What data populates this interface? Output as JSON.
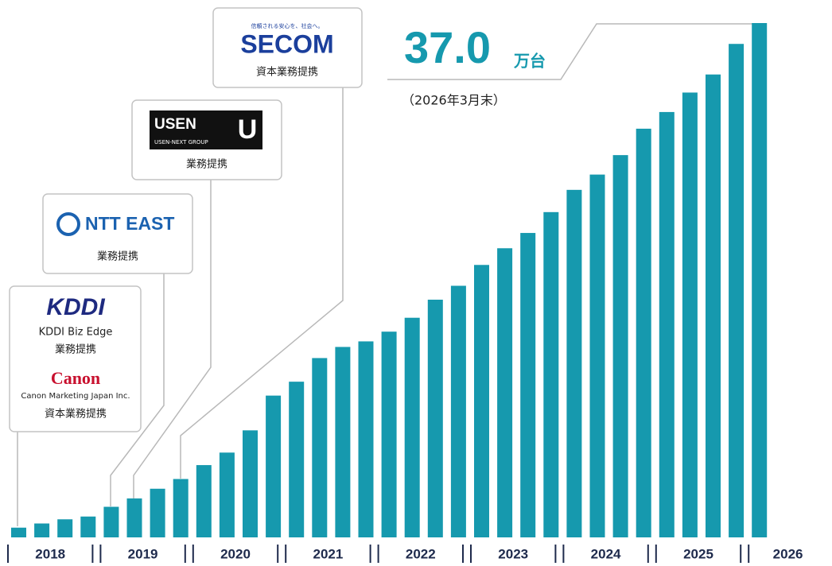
{
  "chart_data": {
    "type": "bar",
    "color": "#1699ae",
    "categories": [
      null,
      null,
      null,
      null,
      null,
      null,
      null,
      null,
      null,
      null,
      null,
      null,
      null,
      null,
      null,
      null,
      null,
      null,
      null,
      null,
      null,
      null,
      null,
      null,
      null,
      null,
      null,
      null,
      null,
      null,
      null,
      null,
      null
    ],
    "values": [
      0.7,
      1.0,
      1.3,
      1.5,
      2.2,
      2.8,
      3.5,
      4.2,
      5.2,
      6.1,
      7.7,
      10.2,
      11.2,
      12.9,
      13.7,
      14.1,
      14.8,
      15.8,
      17.1,
      18.1,
      19.6,
      20.8,
      21.9,
      23.4,
      25.0,
      26.1,
      27.5,
      29.4,
      30.6,
      32.0,
      33.3,
      35.5,
      37.0
    ],
    "ylim": [
      0,
      37.0
    ],
    "groups": [
      {
        "label": "2018",
        "size": 4
      },
      {
        "label": "2019",
        "size": 4
      },
      {
        "label": "2020",
        "size": 4
      },
      {
        "label": "2021",
        "size": 4
      },
      {
        "label": "2022",
        "size": 4
      },
      {
        "label": "2023",
        "size": 4
      },
      {
        "label": "2024",
        "size": 4
      },
      {
        "label": "2025",
        "size": 4
      },
      {
        "label": "2026",
        "size": 1
      }
    ],
    "highlight": {
      "value": "37.0",
      "unit": "万台",
      "note": "（2026年3月末）"
    },
    "annotations": [
      {
        "logo": "KDDI",
        "name": "KDDI Biz Edge",
        "relation": "業務提携",
        "logo2": "Canon",
        "name2": "Canon Marketing Japan Inc.",
        "relation2": "資本業務提携"
      },
      {
        "logo": "NTT EAST",
        "relation": "業務提携"
      },
      {
        "logo": "USEN",
        "tagline": "USEN-NEXT GROUP",
        "mark": "U",
        "relation": "業務提携"
      },
      {
        "tagline": "信頼される安心を、社会へ。",
        "logo": "SECOM",
        "relation": "資本業務提携"
      }
    ]
  }
}
